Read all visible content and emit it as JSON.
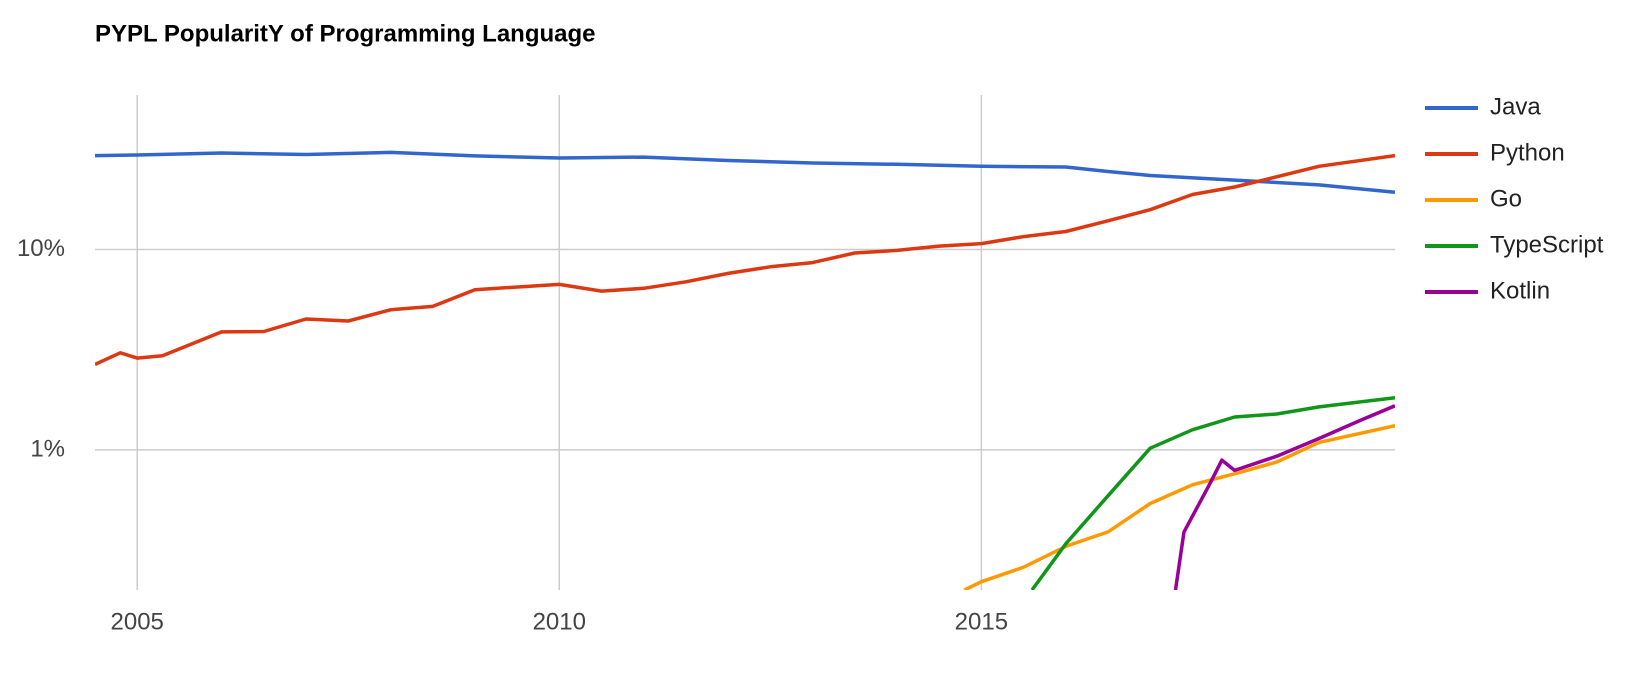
{
  "chart_data": {
    "type": "line",
    "title": "PYPL PopularitY of Programming Language",
    "log_scale": true,
    "grid": true,
    "legend": "right",
    "xlim": [
      2004.5,
      2019.9
    ],
    "xticks": [
      2005,
      2010,
      2015
    ],
    "ylim": [
      0.2,
      59
    ],
    "yticks": [
      {
        "value": 1,
        "label": "1%"
      },
      {
        "value": 10,
        "label": "10%"
      }
    ],
    "series": [
      {
        "name": "Java",
        "color": "#3366cc",
        "x": [
          2004.5,
          2005,
          2006,
          2007,
          2008,
          2009,
          2010,
          2011,
          2012,
          2013,
          2014,
          2015,
          2016,
          2016.5,
          2017,
          2018,
          2019,
          2019.9
        ],
        "values": [
          29.4,
          29.6,
          30.3,
          29.8,
          30.5,
          29.3,
          28.6,
          28.9,
          27.8,
          27,
          26.6,
          26,
          25.8,
          24.5,
          23.4,
          22.2,
          21,
          19.3
        ]
      },
      {
        "name": "Python",
        "color": "#dc3912",
        "x": [
          2004.5,
          2004.8,
          2005,
          2005.3,
          2006,
          2006.5,
          2007,
          2007.5,
          2008,
          2008.5,
          2009,
          2010,
          2010.5,
          2011,
          2011.5,
          2012,
          2012.5,
          2013,
          2013.5,
          2014,
          2014.5,
          2015,
          2015.5,
          2016,
          2016.5,
          2017,
          2017.5,
          2018,
          2018.3,
          2019,
          2019.9
        ],
        "values": [
          2.67,
          3.05,
          2.87,
          2.95,
          3.88,
          3.9,
          4.5,
          4.4,
          5.0,
          5.2,
          6.3,
          6.7,
          6.2,
          6.4,
          6.9,
          7.6,
          8.2,
          8.6,
          9.6,
          9.9,
          10.4,
          10.7,
          11.6,
          12.3,
          13.9,
          15.8,
          18.8,
          20.5,
          22,
          26,
          29.4
        ]
      },
      {
        "name": "Go",
        "color": "#ff9900",
        "x": [
          2014.8,
          2015,
          2015.5,
          2016,
          2016.5,
          2017,
          2017.5,
          2018,
          2018.5,
          2019,
          2019.9
        ],
        "values": [
          0.2,
          0.22,
          0.26,
          0.33,
          0.39,
          0.54,
          0.67,
          0.76,
          0.87,
          1.09,
          1.32
        ]
      },
      {
        "name": "TypeScript",
        "color": "#109618",
        "x": [
          2015.6,
          2016,
          2016.5,
          2017,
          2017.5,
          2018,
          2018.5,
          2019,
          2019.9
        ],
        "values": [
          0.2,
          0.34,
          0.59,
          1.02,
          1.26,
          1.46,
          1.51,
          1.64,
          1.82
        ]
      },
      {
        "name": "Kotlin",
        "color": "#990099",
        "x": [
          2017.3,
          2017.4,
          2017.7,
          2017.85,
          2018,
          2018.5,
          2019,
          2019.5,
          2019.9
        ],
        "values": [
          0.2,
          0.39,
          0.67,
          0.89,
          0.79,
          0.93,
          1.14,
          1.41,
          1.66
        ]
      }
    ]
  }
}
